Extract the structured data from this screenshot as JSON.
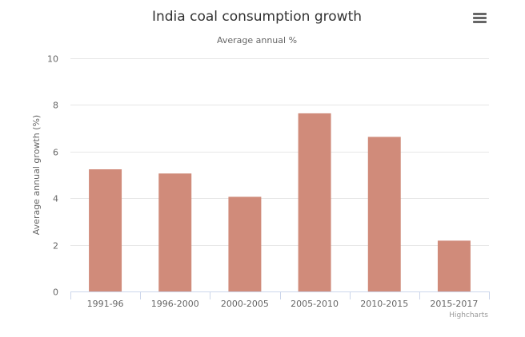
{
  "chart_data": {
    "type": "bar",
    "title": "India coal consumption growth",
    "subtitle": "Average annual %",
    "xlabel": "",
    "ylabel": "Average annual growth (%)",
    "categories": [
      "1991-96",
      "1996-2000",
      "2000-2005",
      "2005-2010",
      "2010-2015",
      "2015-2017"
    ],
    "series": [
      {
        "name": "Average annual growth",
        "values": [
          5.24,
          5.06,
          4.06,
          7.64,
          6.63,
          2.18
        ]
      }
    ],
    "ylim": [
      0,
      10
    ],
    "yticks": [
      0,
      2,
      4,
      6,
      8,
      10
    ],
    "grid": true,
    "legend": "none",
    "bar_color": "#d08b7a",
    "grid_color": "#e6e6e6",
    "axis_color": "#ccd6eb"
  },
  "credits": "Highcharts",
  "menu": {
    "icon": "hamburger-menu-icon"
  }
}
